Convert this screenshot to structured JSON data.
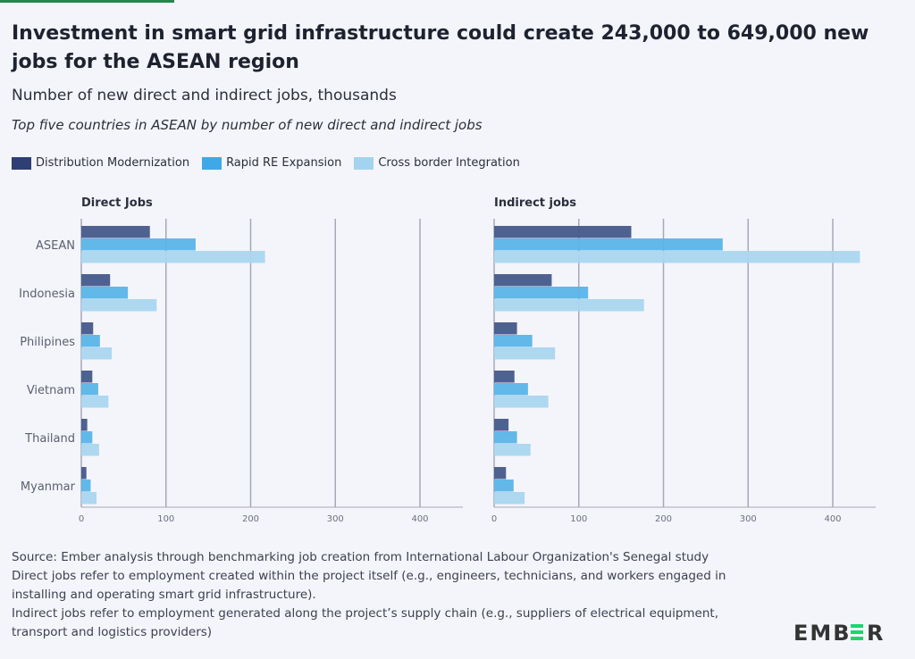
{
  "title": "Investment in smart grid infrastructure could create 243,000 to 649,000 new jobs for the ASEAN region",
  "subtitle": "Number of new direct and indirect jobs, thousands",
  "subtitle2": "Top five countries in ASEAN by number of new direct and indirect jobs",
  "colors": {
    "Distribution Modernization": "#46588a",
    "Rapid RE Expansion": "#5ab4e8",
    "Cross border Integration": "#a9d6ef",
    "logo_accent": "#1ed46e"
  },
  "legend": [
    "Distribution Modernization",
    "Rapid RE Expansion",
    "Cross border Integration"
  ],
  "chart_data": [
    {
      "type": "bar",
      "orientation": "horizontal",
      "title": "Direct Jobs",
      "categories": [
        "ASEAN",
        "Indonesia",
        "Philipines",
        "Vietnam",
        "Thailand",
        "Myanmar"
      ],
      "series": [
        {
          "name": "Distribution Modernization",
          "values": [
            81,
            34,
            14,
            13,
            7,
            6
          ]
        },
        {
          "name": "Rapid RE Expansion",
          "values": [
            135,
            55,
            22,
            20,
            13,
            11
          ]
        },
        {
          "name": "Cross border Integration",
          "values": [
            217,
            89,
            36,
            32,
            21,
            18
          ]
        }
      ],
      "xlim": [
        0,
        450
      ],
      "xticks": [
        "0",
        "100",
        "200",
        "300",
        "400"
      ],
      "grid": true
    },
    {
      "type": "bar",
      "orientation": "horizontal",
      "title": "Indirect jobs",
      "categories": [
        "ASEAN",
        "Indonesia",
        "Philipines",
        "Vietnam",
        "Thailand",
        "Myanmar"
      ],
      "series": [
        {
          "name": "Distribution Modernization",
          "values": [
            162,
            68,
            27,
            24,
            17,
            14
          ]
        },
        {
          "name": "Rapid RE Expansion",
          "values": [
            270,
            111,
            45,
            40,
            27,
            23
          ]
        },
        {
          "name": "Cross border Integration",
          "values": [
            432,
            177,
            72,
            64,
            43,
            36
          ]
        }
      ],
      "xlim": [
        0,
        450
      ],
      "xticks": [
        "0",
        "100",
        "200",
        "300",
        "400"
      ],
      "grid": true
    }
  ],
  "footer": [
    "Source: Ember analysis through benchmarking job creation from International Labour Organization's Senegal study",
    "Direct jobs refer to employment created within the project itself (e.g., engineers, technicians, and workers engaged in installing and operating smart grid infrastructure).",
    "Indirect jobs refer to employment generated along the project’s supply chain (e.g., suppliers of electrical equipment, transport and logistics providers)"
  ],
  "logo": "EMBER"
}
